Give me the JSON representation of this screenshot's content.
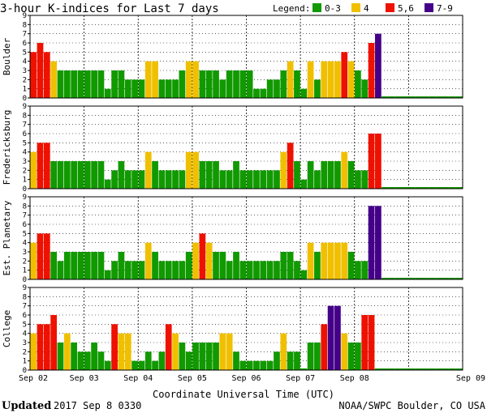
{
  "title": "3-hour K-indices for Last 7 days",
  "legend": {
    "label": "Legend:",
    "items": [
      {
        "label": "0-3",
        "color": "#119900"
      },
      {
        "label": "4",
        "color": "#f0c000"
      },
      {
        "label": "5,6",
        "color": "#ee1100"
      },
      {
        "label": "7-9",
        "color": "#440088"
      }
    ]
  },
  "footer": {
    "updated_label": "Updated",
    "updated_value": "2017 Sep  8 0330",
    "source": "NOAA/SWPC Boulder, CO USA"
  },
  "chart_data": {
    "type": "bar",
    "xlabel": "Coordinate Universal Time (UTC)",
    "x_ticks": [
      "Sep 02",
      "Sep 03",
      "Sep 04",
      "Sep 05",
      "Sep 06",
      "Sep 07",
      "Sep 08",
      "Sep 09"
    ],
    "ylim": [
      0,
      9
    ],
    "y_ticks": [
      0,
      1,
      2,
      3,
      4,
      5,
      6,
      7,
      8,
      9
    ],
    "grid": true,
    "panels": [
      {
        "name": "Boulder",
        "values": [
          5,
          6,
          5,
          4,
          3,
          3,
          3,
          3,
          3,
          3,
          3,
          1,
          3,
          3,
          2,
          2,
          2,
          4,
          4,
          2,
          2,
          2,
          3,
          4,
          4,
          3,
          3,
          3,
          2,
          3,
          3,
          3,
          3,
          1,
          1,
          2,
          2,
          3,
          4,
          3,
          1,
          4,
          2,
          4,
          4,
          4,
          5,
          4,
          3,
          2,
          6,
          7,
          0,
          0,
          0,
          0,
          0,
          0,
          0,
          0,
          0,
          0,
          0,
          0
        ]
      },
      {
        "name": "Fredericksburg",
        "values": [
          4,
          5,
          5,
          3,
          3,
          3,
          3,
          3,
          3,
          3,
          3,
          1,
          2,
          3,
          2,
          2,
          2,
          4,
          3,
          2,
          2,
          2,
          2,
          4,
          4,
          3,
          3,
          3,
          2,
          2,
          3,
          2,
          2,
          2,
          2,
          2,
          2,
          4,
          5,
          3,
          1,
          3,
          2,
          3,
          3,
          3,
          4,
          3,
          2,
          2,
          6,
          6,
          0,
          0,
          0,
          0,
          0,
          0,
          0,
          0,
          0,
          0,
          0,
          0
        ]
      },
      {
        "name": "Est. Planetary",
        "values": [
          4,
          5,
          5,
          3,
          2,
          3,
          3,
          3,
          3,
          3,
          3,
          1,
          2,
          3,
          2,
          2,
          2,
          4,
          3,
          2,
          2,
          2,
          2,
          3,
          4,
          5,
          4,
          3,
          3,
          2,
          3,
          2,
          2,
          2,
          2,
          2,
          2,
          3,
          3,
          2,
          1,
          4,
          3,
          4,
          4,
          4,
          4,
          3,
          2,
          2,
          8,
          8,
          0,
          0,
          0,
          0,
          0,
          0,
          0,
          0,
          0,
          0,
          0,
          0
        ]
      },
      {
        "name": "College",
        "values": [
          4,
          5,
          5,
          6,
          3,
          4,
          3,
          2,
          2,
          3,
          2,
          1,
          5,
          4,
          4,
          1,
          1,
          2,
          1,
          2,
          5,
          4,
          3,
          2,
          3,
          3,
          3,
          3,
          4,
          4,
          2,
          1,
          1,
          1,
          1,
          1,
          2,
          4,
          2,
          2,
          0,
          3,
          3,
          5,
          7,
          7,
          4,
          3,
          3,
          6,
          6,
          0,
          0,
          0,
          0,
          0,
          0,
          0,
          0,
          0,
          0,
          0,
          0,
          0
        ]
      }
    ]
  }
}
